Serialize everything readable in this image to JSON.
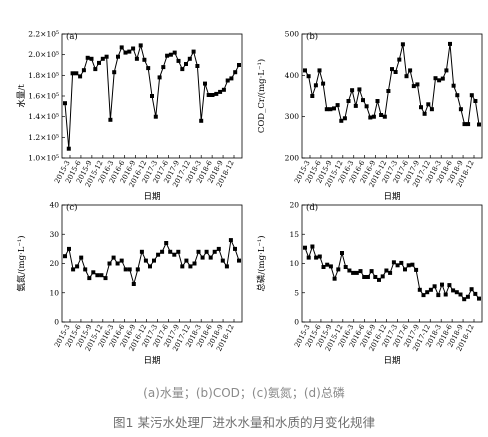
{
  "captions": {
    "subcaption": "(a)水量；(b)COD；(c)氨氮；(d)总磷",
    "figure_caption": "图1 某污水处理厂进水水量和水质的月变化规律"
  },
  "style": {
    "line_color": "#000000",
    "caption_color": "#8a8a8a"
  },
  "chart_data": [
    {
      "panel": "(a)",
      "type": "line",
      "xlabel": "日期",
      "ylabel": "水量/t",
      "ylim": [
        1.0,
        2.2
      ],
      "yticks": [
        1.0,
        1.2,
        1.4,
        1.6,
        1.8,
        2.0,
        2.2
      ],
      "yticklabels": [
        "1.0×10⁵",
        "1.2×10⁵",
        "1.4×10⁵",
        "1.6×10⁵",
        "1.8×10⁵",
        "2.0×10⁵",
        "2.2×10⁵"
      ],
      "xticklabels": [
        "2015-3",
        "2015-6",
        "2015-9",
        "2015-12",
        "2016-3",
        "2016-6",
        "2016-9",
        "2016-12",
        "2017-3",
        "2017-6",
        "2017-9",
        "2017-12",
        "2018-3",
        "2018-6",
        "2018-9",
        "2018-12"
      ],
      "values": [
        1.53,
        1.09,
        1.82,
        1.82,
        1.79,
        1.85,
        1.97,
        1.96,
        1.86,
        1.92,
        1.96,
        1.98,
        1.37,
        1.83,
        1.98,
        2.07,
        2.02,
        2.03,
        2.06,
        1.96,
        2.09,
        1.95,
        1.87,
        1.6,
        1.4,
        1.78,
        1.88,
        1.99,
        2.0,
        2.02,
        1.94,
        1.86,
        1.91,
        1.96,
        2.03,
        1.89,
        1.36,
        1.72,
        1.61,
        1.61,
        1.62,
        1.64,
        1.66,
        1.75,
        1.77,
        1.83,
        1.9
      ]
    },
    {
      "panel": "(b)",
      "type": "line",
      "xlabel": "日期",
      "ylabel": "COD_Cr/(mg·L⁻¹)",
      "ylim": [
        200,
        500
      ],
      "yticks": [
        200,
        300,
        400,
        500
      ],
      "xticklabels": [
        "2015-3",
        "2015-6",
        "2015-9",
        "2015-12",
        "2016-3",
        "2016-6",
        "2016-9",
        "2016-12",
        "2017-3",
        "2017-6",
        "2017-9",
        "2017-12",
        "2018-3",
        "2018-6",
        "2018-9",
        "2018-12"
      ],
      "values": [
        412,
        398,
        350,
        376,
        412,
        380,
        318,
        318,
        320,
        328,
        290,
        296,
        338,
        364,
        326,
        366,
        340,
        325,
        298,
        300,
        338,
        304,
        300,
        362,
        415,
        408,
        438,
        475,
        398,
        412,
        374,
        378,
        323,
        307,
        330,
        318,
        393,
        388,
        392,
        412,
        476,
        375,
        352,
        318,
        282,
        282,
        352,
        338,
        281
      ]
    },
    {
      "panel": "(c)",
      "type": "line",
      "xlabel": "日期",
      "ylabel": "氨氮/(mg·L⁻¹)",
      "ylim": [
        0,
        40
      ],
      "yticks": [
        0,
        10,
        20,
        30,
        40
      ],
      "xticklabels": [
        "2015-3",
        "2015-6",
        "2015-9",
        "2015-12",
        "2016-3",
        "2016-6",
        "2016-9",
        "2016-12",
        "2017-3",
        "2017-6",
        "2017-9",
        "2017-12",
        "2018-3",
        "2018-6",
        "2018-9",
        "2018-12"
      ],
      "values": [
        22.5,
        25,
        18,
        19,
        22,
        18,
        15,
        17,
        16,
        16,
        15,
        20,
        22,
        20,
        21,
        18,
        18,
        13,
        18,
        24,
        21,
        19,
        21,
        23,
        24,
        27,
        24,
        23,
        24,
        19,
        21,
        19,
        20,
        24,
        22,
        24,
        22,
        24,
        25,
        21,
        19,
        28,
        25,
        21
      ]
    },
    {
      "panel": "(d)",
      "type": "line",
      "xlabel": "日期",
      "ylabel": "总磷/(mg·L⁻¹)",
      "ylim": [
        0,
        20
      ],
      "yticks": [
        0,
        5,
        10,
        15,
        20
      ],
      "xticklabels": [
        "2015-3",
        "2015-6",
        "2015-9",
        "2015-12",
        "2016-3",
        "2016-6",
        "2016-9",
        "2016-12",
        "2017-3",
        "2017-6",
        "2017-9",
        "2017-12",
        "2018-3",
        "2018-6",
        "2018-9",
        "2018-12"
      ],
      "values": [
        12.7,
        11,
        12.9,
        11,
        11.2,
        9.4,
        9.8,
        9.5,
        7.4,
        9,
        11.8,
        9.4,
        8.8,
        8.4,
        8.4,
        8.7,
        7.7,
        7.7,
        8.7,
        7.7,
        7.2,
        7.8,
        8.8,
        8.4,
        10.2,
        9.7,
        10.1,
        9,
        9.7,
        9.8,
        8.9,
        5.5,
        4.6,
        5.1,
        5.5,
        6.1,
        4.6,
        6.4,
        4.7,
        6.3,
        5.4,
        5.1,
        4.7,
        3.9,
        4.3,
        5.6,
        4.8,
        4
      ]
    }
  ]
}
